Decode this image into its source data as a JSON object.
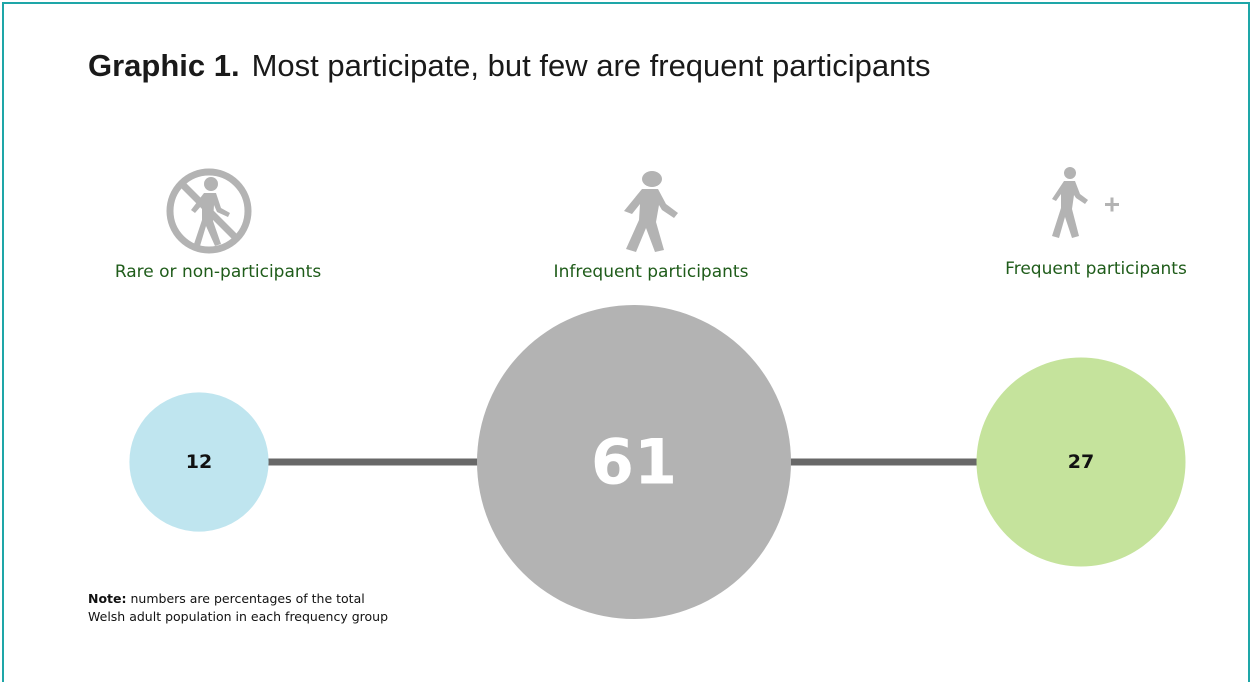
{
  "title": {
    "prefix": "Graphic 1.",
    "text": "Most participate, but few are frequent participants"
  },
  "note": {
    "label": "Note:",
    "text": "numbers are percentages of  the total Welsh adult population in each frequency group"
  },
  "icons": {
    "rare": "no-walking-icon",
    "infrequent": "walking-person-icon",
    "frequent": "walking-person-plus-icon"
  },
  "colors": {
    "frame": "#1ea6a8",
    "line": "#686868",
    "label": "#1f5c1a",
    "icon": "#b3b3b3",
    "rare": "#bfe5ef",
    "infrequent": "#b3b3b3",
    "frequent": "#c5e39c"
  },
  "chart_data": {
    "type": "bubble",
    "title": "Most participate, but few are frequent participants",
    "unit": "% of Welsh adult population",
    "categories": [
      "Rare or non-participants",
      "Infrequent participants",
      "Frequent participants"
    ],
    "values": [
      12,
      61,
      27
    ]
  }
}
